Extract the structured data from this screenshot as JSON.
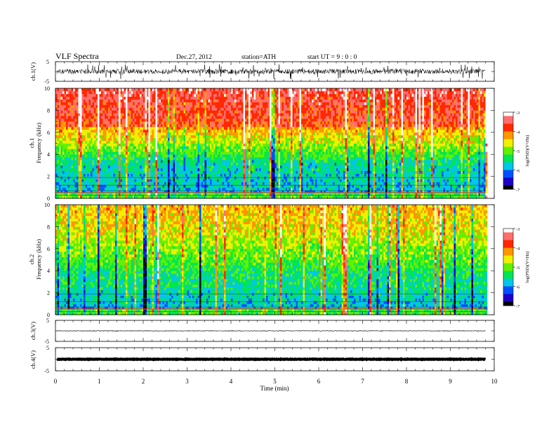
{
  "header": {
    "title": "VLF Spectra",
    "date": "Dec.27, 2012",
    "station": "station=ATH",
    "start": "start UT = 9 : 0 : 0"
  },
  "chart_data": {
    "type": "heatmap",
    "xlabel": "Time (min)",
    "xlim": [
      0,
      10
    ],
    "x_ticks": [
      0,
      1,
      2,
      3,
      4,
      5,
      6,
      7,
      8,
      9,
      10
    ],
    "data_end_min": 9.8,
    "waveforms": [
      {
        "name": "ch.1",
        "ylabel": "ch.1(V)",
        "ylim": [
          -5,
          5
        ],
        "y_ticks": [
          "5",
          "-5"
        ],
        "level": 0,
        "amplitude": "large"
      },
      {
        "name": "ch.3",
        "ylabel": "ch.3(V)",
        "ylim": [
          -5,
          5
        ],
        "y_ticks": [
          "5",
          "-5"
        ],
        "level": 0,
        "amplitude": "small"
      },
      {
        "name": "ch.4",
        "ylabel": "ch.4(V)",
        "ylim": [
          -5,
          5
        ],
        "y_ticks": [
          "5",
          "-5"
        ],
        "level": 0,
        "amplitude": "thick"
      }
    ],
    "spectrograms": [
      {
        "name": "ch.1",
        "ylabel": "ch.1\nFrequency (kHz)",
        "ylim": [
          0,
          10
        ],
        "y_ticks": [
          0,
          2,
          4,
          6,
          8,
          10
        ],
        "colorbar": {
          "label": "log(PSD)(V²/Hz)",
          "range": [
            -7,
            -3
          ],
          "ticks": [
            "-3",
            "-4",
            "-5",
            "-6",
            "-7"
          ]
        }
      },
      {
        "name": "ch.2",
        "ylabel": "ch.2\nFrequency (kHz)",
        "ylim": [
          0,
          10
        ],
        "y_ticks": [
          0,
          2,
          4,
          6,
          8,
          10
        ],
        "colorbar": {
          "label": "log(PSD)(V²/Hz)",
          "range": [
            -7,
            -3
          ],
          "ticks": [
            "-3",
            "-4",
            "-5",
            "-6",
            "-7"
          ]
        }
      }
    ],
    "colormap": [
      "#000000",
      "#1e00c8",
      "#0050ff",
      "#00c8e6",
      "#00e650",
      "#64f000",
      "#f0f000",
      "#ff9600",
      "#ff2800",
      "#ff6e6e",
      "#ffffff"
    ]
  }
}
